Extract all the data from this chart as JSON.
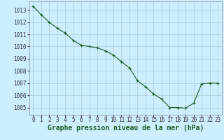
{
  "x": [
    0,
    1,
    2,
    3,
    4,
    5,
    6,
    7,
    8,
    9,
    10,
    11,
    12,
    13,
    14,
    15,
    16,
    17,
    18,
    19,
    20,
    21,
    22,
    23
  ],
  "y": [
    1013.3,
    1012.6,
    1012.0,
    1011.5,
    1011.1,
    1010.5,
    1010.1,
    1010.0,
    1009.9,
    1009.65,
    1009.3,
    1008.75,
    1008.25,
    1007.2,
    1006.7,
    1006.1,
    1005.7,
    1005.0,
    1005.0,
    1004.95,
    1005.35,
    1006.95,
    1007.0,
    1007.0
  ],
  "line_color": "#1a5c1a",
  "marker": "+",
  "marker_size": 3,
  "marker_linewidth": 0.8,
  "bg_color": "#cceeff",
  "grid_color": "#aacccc",
  "xlabel": "Graphe pression niveau de la mer (hPa)",
  "xlabel_fontsize": 7,
  "ylabel_ticks": [
    1005,
    1006,
    1007,
    1008,
    1009,
    1010,
    1011,
    1012,
    1013
  ],
  "xlim": [
    -0.5,
    23.5
  ],
  "ylim": [
    1004.4,
    1013.7
  ],
  "tick_fontsize": 5.5,
  "line_width": 0.8
}
